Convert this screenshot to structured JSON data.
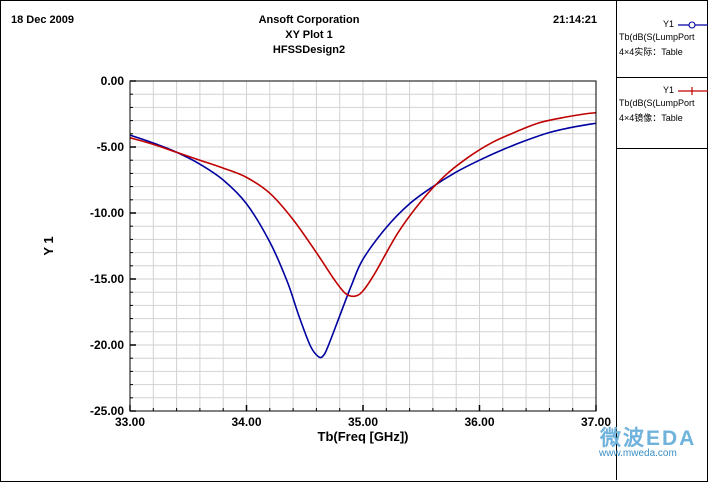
{
  "header": {
    "date": "18 Dec 2009",
    "company": "Ansoft Corporation",
    "plot_title": "XY Plot 1",
    "design": "HFSSDesign2",
    "time": "21:14:21"
  },
  "legend": [
    {
      "label": "Y1",
      "expr": "Tb(dB(S(LumpPort",
      "sub": "4×4实际：Table",
      "color": "#0000a0",
      "marker": "circle"
    },
    {
      "label": "Y1",
      "expr": "Tb(dB(S(LumpPort",
      "sub": "4×4镜像：Table",
      "color": "#c00000",
      "marker": "plus"
    }
  ],
  "watermark": {
    "logo": "微波EDA",
    "url": "www.mweda.com"
  },
  "chart_data": {
    "type": "line",
    "title": "",
    "xlabel": "Tb(Freq [GHz])",
    "ylabel": "Y 1",
    "xlim": [
      33.0,
      37.0
    ],
    "ylim": [
      -25.0,
      0.0
    ],
    "xticks": [
      33.0,
      34.0,
      35.0,
      36.0,
      37.0
    ],
    "xtick_labels": [
      "33.00",
      "34.00",
      "35.00",
      "36.00",
      "37.00"
    ],
    "yticks": [
      0,
      -5,
      -10,
      -15,
      -20,
      -25
    ],
    "ytick_labels": [
      "0.00",
      "-5.00",
      "-10.00",
      "-15.00",
      "-20.00",
      "-25.00"
    ],
    "grid": true,
    "legend_position": "right",
    "series": [
      {
        "name": "4×4实际：Table",
        "color": "#0000a0",
        "x": [
          33.0,
          33.2,
          33.4,
          33.6,
          33.8,
          34.0,
          34.2,
          34.35,
          34.45,
          34.55,
          34.62,
          34.66,
          34.7,
          34.8,
          34.9,
          35.0,
          35.2,
          35.4,
          35.6,
          35.8,
          36.0,
          36.2,
          36.4,
          36.6,
          36.8,
          37.0
        ],
        "y": [
          -4.1,
          -4.7,
          -5.4,
          -6.3,
          -7.5,
          -9.3,
          -12.2,
          -15.2,
          -17.8,
          -20.1,
          -20.9,
          -20.8,
          -20.1,
          -17.8,
          -15.5,
          -13.5,
          -11.1,
          -9.3,
          -8.0,
          -6.9,
          -6.0,
          -5.2,
          -4.5,
          -3.9,
          -3.5,
          -3.2
        ]
      },
      {
        "name": "4×4镜像：Table",
        "color": "#c00000",
        "x": [
          33.0,
          33.2,
          33.4,
          33.6,
          33.8,
          34.0,
          34.2,
          34.4,
          34.6,
          34.75,
          34.85,
          34.93,
          35.0,
          35.1,
          35.3,
          35.5,
          35.7,
          35.9,
          36.1,
          36.3,
          36.5,
          36.7,
          36.9,
          37.0
        ],
        "y": [
          -4.3,
          -4.8,
          -5.4,
          -6.0,
          -6.6,
          -7.3,
          -8.5,
          -10.5,
          -13.0,
          -15.0,
          -16.1,
          -16.3,
          -15.9,
          -14.6,
          -11.5,
          -9.1,
          -7.2,
          -5.8,
          -4.7,
          -3.9,
          -3.2,
          -2.8,
          -2.5,
          -2.4
        ]
      }
    ]
  }
}
